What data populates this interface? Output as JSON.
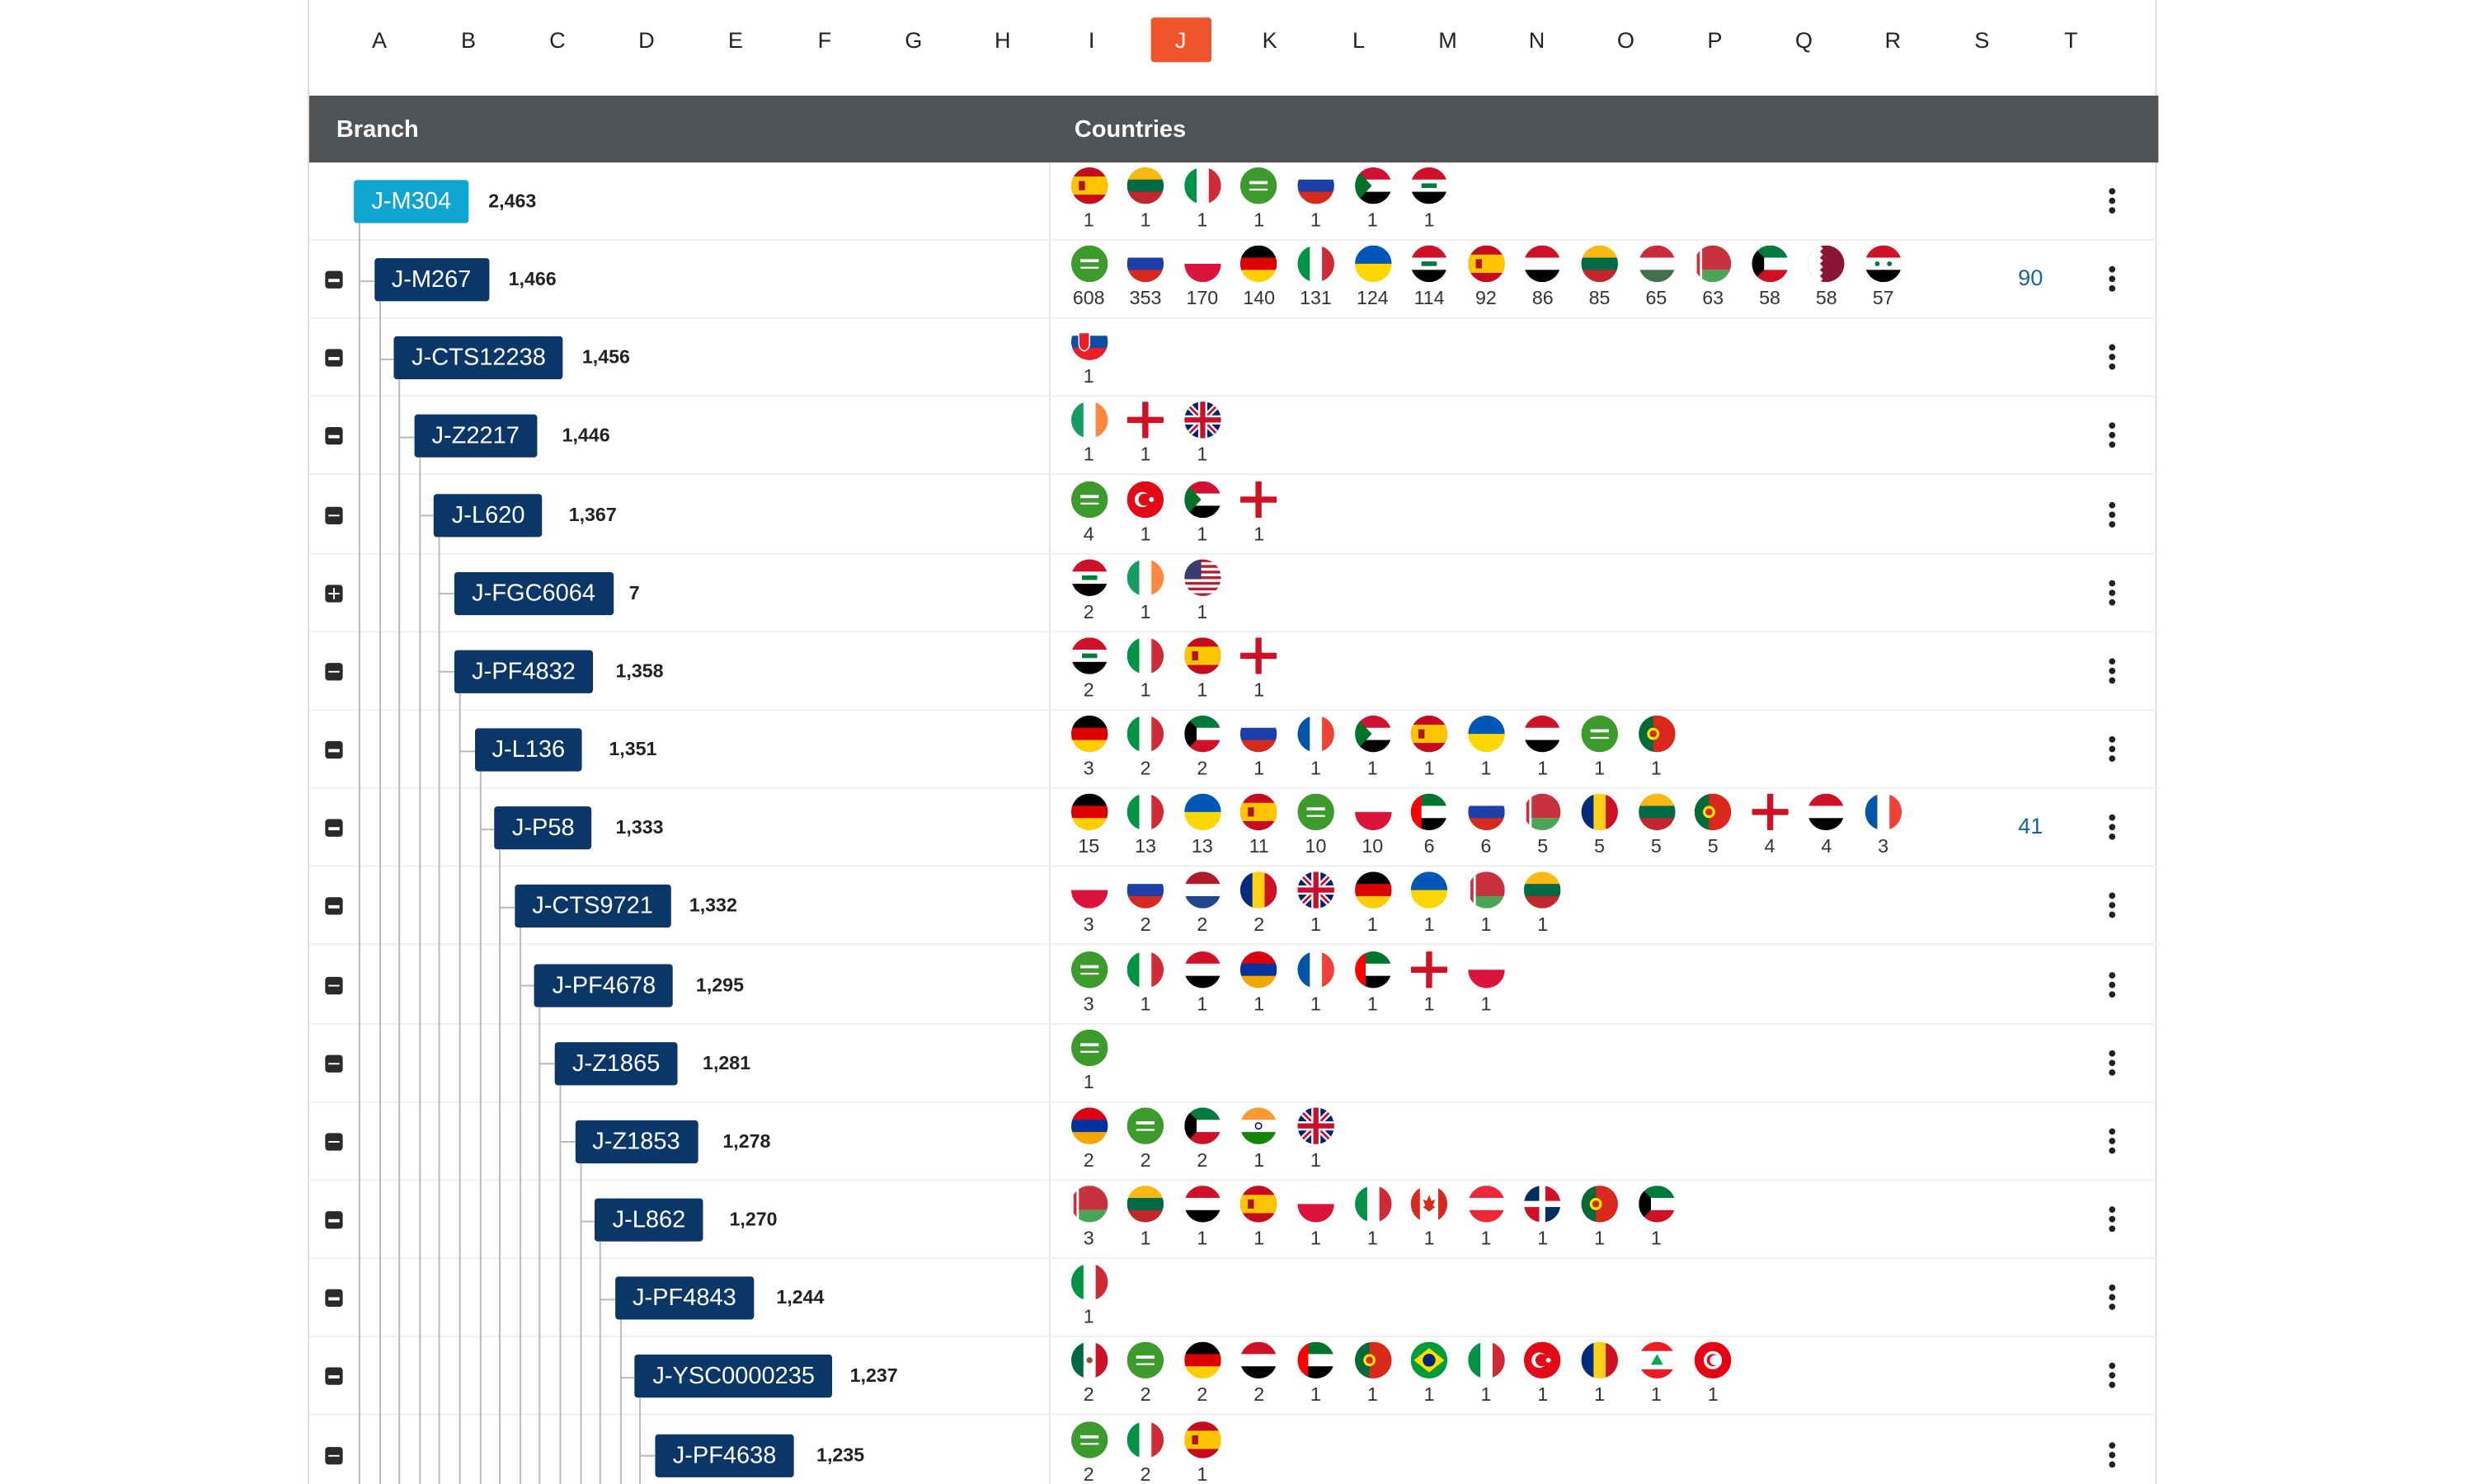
{
  "alphabet": {
    "letters": [
      "A",
      "B",
      "C",
      "D",
      "E",
      "F",
      "G",
      "H",
      "I",
      "J",
      "K",
      "L",
      "M",
      "N",
      "O",
      "P",
      "Q",
      "R",
      "S",
      "T"
    ],
    "active": "J"
  },
  "table": {
    "header_branch": "Branch",
    "header_countries": "Countries"
  },
  "colors": {
    "accent": "#f0542d",
    "branch_button": "#0b3768",
    "root_button": "#0ea5d0",
    "header_bg": "#505456",
    "more_link": "#1564a8"
  },
  "rows": [
    {
      "branch": "J-M304",
      "count": "2,463",
      "depth": 0,
      "toggle": "none",
      "flags": [
        [
          "spain",
          "1"
        ],
        [
          "lithuania",
          "1"
        ],
        [
          "italy",
          "1"
        ],
        [
          "saudi",
          "1"
        ],
        [
          "russia",
          "1"
        ],
        [
          "sudan",
          "1"
        ],
        [
          "iraq",
          "1"
        ]
      ],
      "more": ""
    },
    {
      "branch": "J-M267",
      "count": "1,466",
      "depth": 1,
      "toggle": "minus",
      "flags": [
        [
          "saudi",
          "608"
        ],
        [
          "russia",
          "353"
        ],
        [
          "poland",
          "170"
        ],
        [
          "germany",
          "140"
        ],
        [
          "italy",
          "131"
        ],
        [
          "ukraine",
          "124"
        ],
        [
          "iraq",
          "114"
        ],
        [
          "spain",
          "92"
        ],
        [
          "yemen",
          "86"
        ],
        [
          "lithuania",
          "85"
        ],
        [
          "hungary",
          "65"
        ],
        [
          "belarus",
          "63"
        ],
        [
          "kuwait",
          "58"
        ],
        [
          "qatar",
          "58"
        ],
        [
          "syria",
          "57"
        ]
      ],
      "more": "90"
    },
    {
      "branch": "J-CTS12238",
      "count": "1,456",
      "depth": 2,
      "toggle": "minus",
      "flags": [
        [
          "slovakia",
          "1"
        ]
      ],
      "more": ""
    },
    {
      "branch": "J-Z2217",
      "count": "1,446",
      "depth": 3,
      "toggle": "minus",
      "flags": [
        [
          "ireland",
          "1"
        ],
        [
          "england",
          "1"
        ],
        [
          "uk",
          "1"
        ]
      ],
      "more": ""
    },
    {
      "branch": "J-L620",
      "count": "1,367",
      "depth": 4,
      "toggle": "minus",
      "flags": [
        [
          "saudi",
          "4"
        ],
        [
          "turkey",
          "1"
        ],
        [
          "sudan",
          "1"
        ],
        [
          "england",
          "1"
        ]
      ],
      "more": ""
    },
    {
      "branch": "J-FGC6064",
      "count": "7",
      "depth": 5,
      "toggle": "plus",
      "flags": [
        [
          "iraq",
          "2"
        ],
        [
          "ireland",
          "1"
        ],
        [
          "usa",
          "1"
        ]
      ],
      "more": ""
    },
    {
      "branch": "J-PF4832",
      "count": "1,358",
      "depth": 5,
      "toggle": "minus",
      "flags": [
        [
          "iraq",
          "2"
        ],
        [
          "italy",
          "1"
        ],
        [
          "spain",
          "1"
        ],
        [
          "england",
          "1"
        ]
      ],
      "more": ""
    },
    {
      "branch": "J-L136",
      "count": "1,351",
      "depth": 6,
      "toggle": "minus",
      "flags": [
        [
          "germany",
          "3"
        ],
        [
          "italy",
          "2"
        ],
        [
          "kuwait",
          "2"
        ],
        [
          "russia",
          "1"
        ],
        [
          "france",
          "1"
        ],
        [
          "sudan",
          "1"
        ],
        [
          "spain",
          "1"
        ],
        [
          "ukraine",
          "1"
        ],
        [
          "yemen",
          "1"
        ],
        [
          "saudi",
          "1"
        ],
        [
          "portugal",
          "1"
        ]
      ],
      "more": ""
    },
    {
      "branch": "J-P58",
      "count": "1,333",
      "depth": 7,
      "toggle": "minus",
      "flags": [
        [
          "germany",
          "15"
        ],
        [
          "italy",
          "13"
        ],
        [
          "ukraine",
          "13"
        ],
        [
          "spain",
          "11"
        ],
        [
          "saudi",
          "10"
        ],
        [
          "poland",
          "10"
        ],
        [
          "uae",
          "6"
        ],
        [
          "russia",
          "6"
        ],
        [
          "belarus",
          "5"
        ],
        [
          "romania",
          "5"
        ],
        [
          "lithuania",
          "5"
        ],
        [
          "portugal",
          "5"
        ],
        [
          "england",
          "4"
        ],
        [
          "yemen",
          "4"
        ],
        [
          "france",
          "3"
        ]
      ],
      "more": "41"
    },
    {
      "branch": "J-CTS9721",
      "count": "1,332",
      "depth": 8,
      "toggle": "minus",
      "flags": [
        [
          "poland",
          "3"
        ],
        [
          "russia",
          "2"
        ],
        [
          "netherlands",
          "2"
        ],
        [
          "romania",
          "2"
        ],
        [
          "uk",
          "1"
        ],
        [
          "germany",
          "1"
        ],
        [
          "ukraine",
          "1"
        ],
        [
          "belarus",
          "1"
        ],
        [
          "lithuania",
          "1"
        ]
      ],
      "more": ""
    },
    {
      "branch": "J-PF4678",
      "count": "1,295",
      "depth": 9,
      "toggle": "minus",
      "flags": [
        [
          "saudi",
          "3"
        ],
        [
          "italy",
          "1"
        ],
        [
          "yemen",
          "1"
        ],
        [
          "armenia",
          "1"
        ],
        [
          "france",
          "1"
        ],
        [
          "uae",
          "1"
        ],
        [
          "england",
          "1"
        ],
        [
          "poland",
          "1"
        ]
      ],
      "more": ""
    },
    {
      "branch": "J-Z1865",
      "count": "1,281",
      "depth": 10,
      "toggle": "minus",
      "flags": [
        [
          "saudi",
          "1"
        ]
      ],
      "more": ""
    },
    {
      "branch": "J-Z1853",
      "count": "1,278",
      "depth": 11,
      "toggle": "minus",
      "flags": [
        [
          "armenia",
          "2"
        ],
        [
          "saudi",
          "2"
        ],
        [
          "kuwait",
          "2"
        ],
        [
          "india",
          "1"
        ],
        [
          "uk",
          "1"
        ]
      ],
      "more": ""
    },
    {
      "branch": "J-L862",
      "count": "1,270",
      "depth": 12,
      "toggle": "minus",
      "flags": [
        [
          "belarus",
          "3"
        ],
        [
          "lithuania",
          "1"
        ],
        [
          "yemen",
          "1"
        ],
        [
          "spain",
          "1"
        ],
        [
          "poland",
          "1"
        ],
        [
          "italy",
          "1"
        ],
        [
          "canada",
          "1"
        ],
        [
          "austria",
          "1"
        ],
        [
          "dominican",
          "1"
        ],
        [
          "portugal",
          "1"
        ],
        [
          "kuwait",
          "1"
        ]
      ],
      "more": ""
    },
    {
      "branch": "J-PF4843",
      "count": "1,244",
      "depth": 13,
      "toggle": "minus",
      "flags": [
        [
          "italy",
          "1"
        ]
      ],
      "more": ""
    },
    {
      "branch": "J-YSC0000235",
      "count": "1,237",
      "depth": 14,
      "toggle": "minus",
      "flags": [
        [
          "mexico",
          "2"
        ],
        [
          "saudi",
          "2"
        ],
        [
          "germany",
          "2"
        ],
        [
          "yemen",
          "2"
        ],
        [
          "uae",
          "1"
        ],
        [
          "portugal",
          "1"
        ],
        [
          "brazil",
          "1"
        ],
        [
          "italy",
          "1"
        ],
        [
          "turkey",
          "1"
        ],
        [
          "romania",
          "1"
        ],
        [
          "lebanon",
          "1"
        ],
        [
          "tunisia",
          "1"
        ]
      ],
      "more": ""
    },
    {
      "branch": "J-PF4638",
      "count": "1,235",
      "depth": 15,
      "toggle": "minus",
      "flags": [
        [
          "saudi",
          "2"
        ],
        [
          "italy",
          "2"
        ],
        [
          "spain",
          "1"
        ]
      ],
      "more": ""
    }
  ]
}
